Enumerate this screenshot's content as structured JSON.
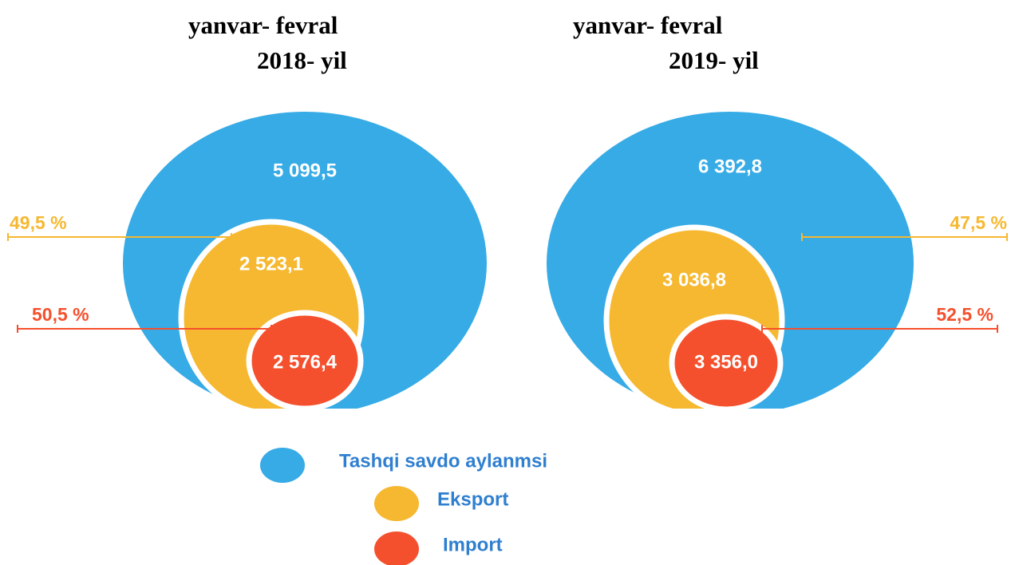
{
  "chart_data": {
    "type": "nested_bubble",
    "panels": [
      {
        "title": "yanvar- fevral",
        "subtitle": "2018- yil"
      },
      {
        "title": "yanvar- fevral",
        "subtitle": "2019- yil"
      }
    ],
    "series": [
      {
        "name": "Tashqi savdo aylanmsi",
        "color": "#36abe6",
        "values": [
          5099.5,
          6392.8
        ],
        "value_labels": [
          "5 099,5",
          "6 392,8"
        ]
      },
      {
        "name": "Eksport",
        "color": "#f6b830",
        "values": [
          2523.1,
          3036.8
        ],
        "value_labels": [
          "2 523,1",
          "3 036,8"
        ],
        "shares": [
          49.5,
          47.5
        ],
        "share_labels": [
          "49,5 %",
          "47,5 %"
        ]
      },
      {
        "name": "Import",
        "color": "#f5502d",
        "values": [
          2576.4,
          3356.0
        ],
        "value_labels": [
          "2 576,4",
          "3 356,0"
        ],
        "shares": [
          50.5,
          52.5
        ],
        "share_labels": [
          "50,5 %",
          "52,5 %"
        ]
      }
    ]
  }
}
